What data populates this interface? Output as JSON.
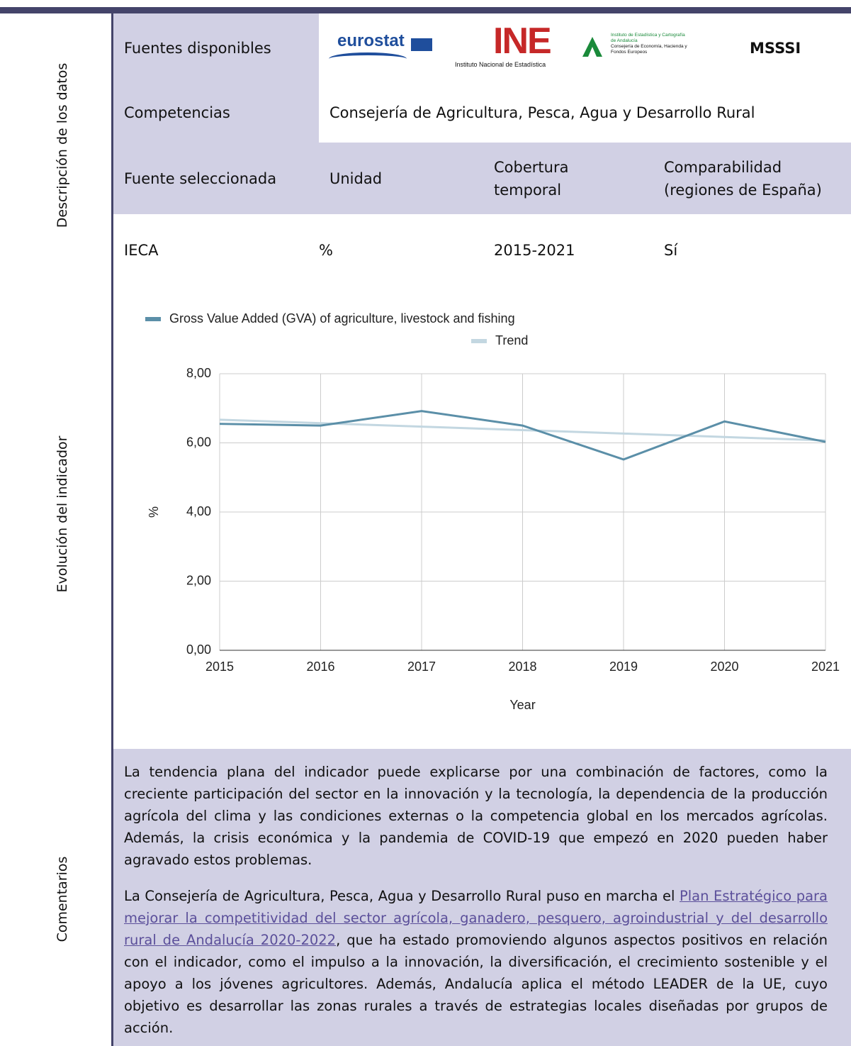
{
  "side_labels": [
    "Descripción de los datos",
    "Evolución del indicador",
    "Comentarios"
  ],
  "sources": {
    "label": "Fuentes disponibles",
    "logos": [
      "eurostat",
      "INE",
      "Instituto Nacional de Estadística",
      "Instituto de Estadística y Cartografía de Andalucía",
      "Consejería de Economía, Hacienda y Fondos Europeos",
      "MSSSI"
    ]
  },
  "competencias": {
    "label": "Competencias",
    "value": "Consejería de Agricultura, Pesca, Agua y Desarrollo Rural"
  },
  "table": {
    "header": [
      "Fuente seleccionada",
      "Unidad",
      "Cobertura temporal",
      "Comparabilidad (regiones de España)"
    ],
    "row": [
      "IECA",
      "%",
      "2015-2021",
      "Sí"
    ]
  },
  "chart_data": {
    "type": "line",
    "x_label": "Year",
    "y_label": "%",
    "x": [
      2015,
      2016,
      2017,
      2018,
      2019,
      2020,
      2021
    ],
    "xlim": [
      2015,
      2021
    ],
    "xticks": [
      2015,
      2016,
      2017,
      2018,
      2019,
      2020,
      2021
    ],
    "ylim": [
      0,
      8
    ],
    "yticks": [
      {
        "value": 0,
        "label": "0,00"
      },
      {
        "value": 2,
        "label": "2,00"
      },
      {
        "value": 4,
        "label": "4,00"
      },
      {
        "value": 6,
        "label": "6,00"
      },
      {
        "value": 8,
        "label": "8,00"
      }
    ],
    "grid": true,
    "series": [
      {
        "name": "Gross Value Added (GVA) of agriculture, livestock and fishing",
        "color": "#5b8fa8",
        "values": [
          6.55,
          6.5,
          6.92,
          6.5,
          5.52,
          6.62,
          6.03
        ]
      },
      {
        "name": "Trend",
        "color": "#c3d7e1",
        "values": [
          6.67,
          6.57,
          6.47,
          6.37,
          6.27,
          6.17,
          6.07
        ]
      }
    ]
  },
  "comments": {
    "p1": "La tendencia plana del indicador puede explicarse por una combinación de factores, como la creciente participación del sector en la innovación y la tecnología, la dependencia de la producción agrícola del clima y las condiciones externas o la competencia global en los mercados agrícolas. Además, la crisis económica y la pandemia de COVID-19 que empezó en 2020 pueden haber agravado estos problemas.",
    "p2_before": "La Consejería de Agricultura, Pesca, Agua y Desarrollo Rural puso en marcha el ",
    "p2_link": "Plan Estratégico para mejorar la competitividad del sector agrícola, ganadero, pesquero, agroindustrial y del desarrollo rural de Andalucía 2020-2022",
    "p2_after": ", que ha estado promoviendo algunos aspectos positivos en relación con el indicador, como el impulso a la innovación, la diversificación, el crecimiento sostenible y el apoyo a los jóvenes agricultores. Además, Andalucía aplica el método LEADER de la UE, cuyo objetivo es desarrollar las zonas rurales a través de estrategias locales diseñadas por grupos de acción."
  }
}
